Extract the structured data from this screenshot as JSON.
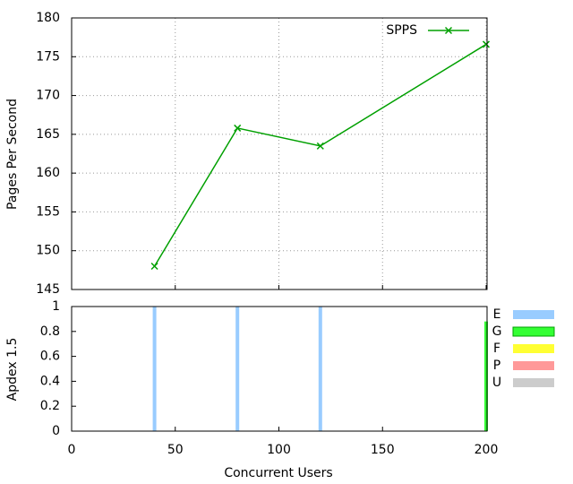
{
  "chart_data": [
    {
      "type": "line",
      "y_label": "Pages Per Second",
      "x": [
        40,
        80,
        120,
        200
      ],
      "series": [
        {
          "name": "SPPS",
          "color": "#00a000",
          "values": [
            148,
            165.8,
            163.5,
            176.6
          ]
        }
      ],
      "ylim": [
        145,
        180
      ],
      "yticks": [
        145,
        150,
        155,
        160,
        165,
        170,
        175,
        180
      ],
      "grid": true,
      "legend": "top-right"
    },
    {
      "type": "bar",
      "y_label": "Apdex 1.5",
      "x_label": "Concurrent Users",
      "x": [
        40,
        80,
        120,
        200
      ],
      "series": [
        {
          "name": "E",
          "color": "#99ccff",
          "values": [
            1,
            1,
            1,
            null
          ]
        },
        {
          "name": "G",
          "color": "#33ff33",
          "values": [
            null,
            null,
            null,
            0.88
          ]
        },
        {
          "name": "F",
          "color": "#ffff33",
          "values": [
            null,
            null,
            null,
            null
          ]
        },
        {
          "name": "P",
          "color": "#ff9999",
          "values": [
            null,
            null,
            null,
            null
          ]
        },
        {
          "name": "U",
          "color": "#cccccc",
          "values": [
            null,
            null,
            null,
            null
          ]
        }
      ],
      "xlim": [
        0,
        200
      ],
      "xticks": [
        0,
        50,
        100,
        150,
        200
      ],
      "ylim": [
        0,
        1
      ],
      "yticks": [
        0,
        0.2,
        0.4,
        0.6,
        0.8,
        1
      ],
      "grid": false,
      "legend": "right"
    }
  ]
}
